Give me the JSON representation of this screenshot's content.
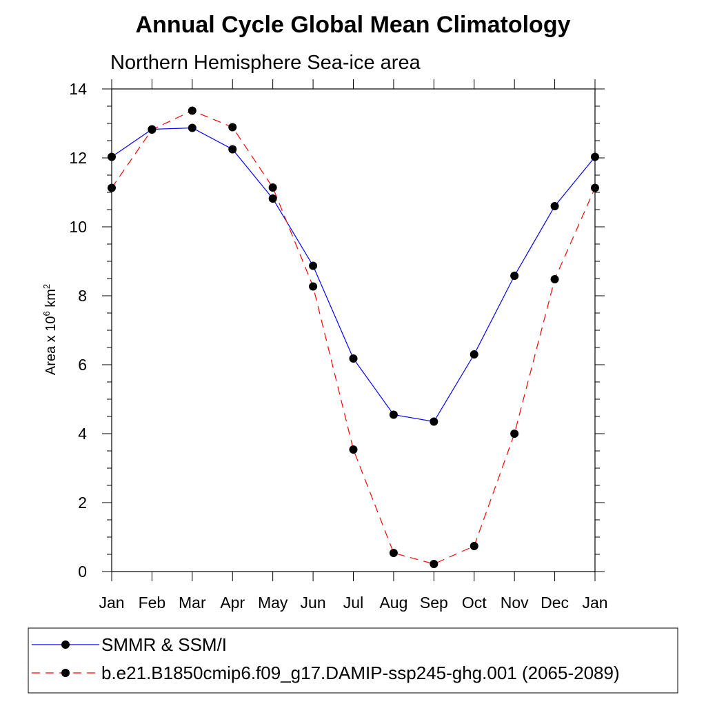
{
  "chart_data": {
    "type": "line",
    "title": "Annual Cycle Global Mean Climatology",
    "subtitle": "Northern Hemisphere Sea-ice area",
    "xlabel": "",
    "ylabel": {
      "base": "Area x 10",
      "exp": "6",
      "unit": " km",
      "unit_exp": "2"
    },
    "categories": [
      "Jan",
      "Feb",
      "Mar",
      "Apr",
      "May",
      "Jun",
      "Jul",
      "Aug",
      "Sep",
      "Oct",
      "Nov",
      "Dec",
      "Jan"
    ],
    "ylim": [
      0,
      14
    ],
    "yticks": [
      0,
      2,
      4,
      6,
      8,
      10,
      12,
      14
    ],
    "series": [
      {
        "name": "SMMR & SSM/I",
        "color": "#0000ff",
        "dash": "solid",
        "values": [
          12.03,
          12.83,
          12.87,
          12.25,
          10.82,
          8.87,
          6.18,
          4.55,
          4.35,
          6.3,
          8.58,
          10.6,
          12.03
        ]
      },
      {
        "name": "b.e21.B1850cmip6.f09_g17.DAMIP-ssp245-ghg.001 (2065-2089)",
        "color": "#ff0000",
        "dash": "dashed",
        "values": [
          11.13,
          12.82,
          13.37,
          12.89,
          11.14,
          8.27,
          3.54,
          0.54,
          0.22,
          0.74,
          4.0,
          8.48,
          11.13
        ]
      }
    ],
    "grid": false,
    "legend_position": "bottom"
  }
}
